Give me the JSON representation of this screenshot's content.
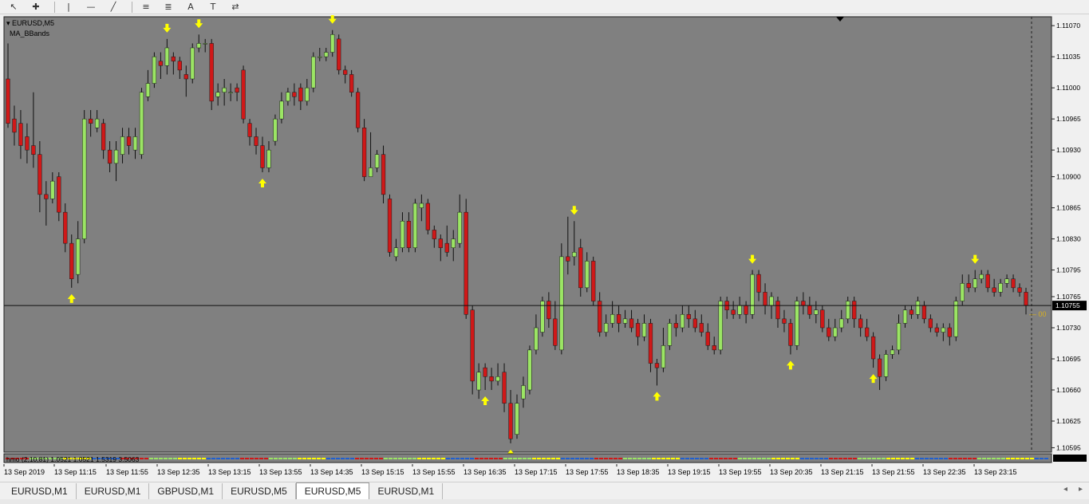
{
  "toolbar": {
    "tools": [
      {
        "name": "cursor-icon",
        "glyph": "↖"
      },
      {
        "name": "crosshair-icon",
        "glyph": "✚"
      },
      {
        "name": "vertical-line-icon",
        "glyph": "|"
      },
      {
        "name": "horizontal-line-icon",
        "glyph": "—"
      },
      {
        "name": "trendline-icon",
        "glyph": "╱"
      },
      {
        "name": "equidistant-channel-icon",
        "glyph": "≡"
      },
      {
        "name": "fibonacci-icon",
        "glyph": "≣"
      },
      {
        "name": "text-icon",
        "glyph": "A"
      },
      {
        "name": "text-label-icon",
        "glyph": "T"
      },
      {
        "name": "arrows-icon",
        "glyph": "⇄"
      }
    ]
  },
  "chart": {
    "symbol_label": "▾ EURUSD,M5",
    "indicator_label": "MA_BBands",
    "sub_indicator_label": "hmo (2,10,81) 1.0521 1.0521 1.5319 3.5063",
    "current_price": "1.10755",
    "price_marker_text": "— 00",
    "colors": {
      "background": "#808080",
      "bull": "#9be564",
      "bear": "#d01818",
      "wick": "#101010",
      "arrow": "#ffff00",
      "price_line": "#101010"
    }
  },
  "chart_data": {
    "type": "candlestick",
    "title": "EURUSD,M5",
    "y_ticks": [
      "1.11070",
      "1.11035",
      "1.11000",
      "1.10965",
      "1.10930",
      "1.10900",
      "1.10865",
      "1.10830",
      "1.10795",
      "1.10765",
      "1.10730",
      "1.10695",
      "1.10660",
      "1.10625",
      "1.10595"
    ],
    "ylim": [
      1.1059,
      1.1108
    ],
    "x_ticks": [
      "13 Sep 2019",
      "13 Sep 11:15",
      "13 Sep 11:55",
      "13 Sep 12:35",
      "13 Sep 13:15",
      "13 Sep 13:55",
      "13 Sep 14:35",
      "13 Sep 15:15",
      "13 Sep 15:55",
      "13 Sep 16:35",
      "13 Sep 17:15",
      "13 Sep 17:55",
      "13 Sep 18:35",
      "13 Sep 19:15",
      "13 Sep 19:55",
      "13 Sep 20:35",
      "13 Sep 21:15",
      "13 Sep 21:55",
      "13 Sep 22:35",
      "13 Sep 23:15"
    ],
    "candles": [
      [
        1.1101,
        1.1096,
        1.1105,
        1.10955
      ],
      [
        1.10965,
        1.1095,
        1.1098,
        1.10935
      ],
      [
        1.1096,
        1.10935,
        1.10975,
        1.1092
      ],
      [
        1.10945,
        1.1093,
        1.1096,
        1.10915
      ],
      [
        1.10935,
        1.10925,
        1.10995,
        1.1091
      ],
      [
        1.10925,
        1.1088,
        1.1094,
        1.1086
      ],
      [
        1.1088,
        1.10875,
        1.10895,
        1.10845
      ],
      [
        1.10875,
        1.10895,
        1.10905,
        1.1087
      ],
      [
        1.109,
        1.1086,
        1.10905,
        1.1085
      ],
      [
        1.1086,
        1.10825,
        1.1087,
        1.10815
      ],
      [
        1.10825,
        1.10785,
        1.10835,
        1.10775
      ],
      [
        1.1079,
        1.1083,
        1.1085,
        1.1078
      ],
      [
        1.1083,
        1.10965,
        1.10975,
        1.10825
      ],
      [
        1.10965,
        1.1096,
        1.10975,
        1.10945
      ],
      [
        1.10955,
        1.10965,
        1.10975,
        1.1095
      ],
      [
        1.1096,
        1.1093,
        1.10965,
        1.1092
      ],
      [
        1.1093,
        1.10915,
        1.1094,
        1.10905
      ],
      [
        1.10915,
        1.1093,
        1.1094,
        1.10895
      ],
      [
        1.10925,
        1.10945,
        1.10955,
        1.10915
      ],
      [
        1.10945,
        1.10935,
        1.10955,
        1.10925
      ],
      [
        1.1093,
        1.10945,
        1.10955,
        1.1092
      ],
      [
        1.10925,
        1.10995,
        1.11,
        1.1092
      ],
      [
        1.1099,
        1.11005,
        1.1102,
        1.10985
      ],
      [
        1.11005,
        1.11035,
        1.1104,
        1.11
      ],
      [
        1.1103,
        1.11025,
        1.1104,
        1.1101
      ],
      [
        1.11025,
        1.11045,
        1.11055,
        1.11015
      ],
      [
        1.11035,
        1.1103,
        1.1104,
        1.11015
      ],
      [
        1.1103,
        1.1102,
        1.11035,
        1.1101
      ],
      [
        1.11015,
        1.1101,
        1.11025,
        1.1099
      ],
      [
        1.1101,
        1.11045,
        1.1105,
        1.11005
      ],
      [
        1.11045,
        1.1105,
        1.1106,
        1.1104
      ],
      [
        1.1105,
        1.1105,
        1.11055,
        1.1104
      ],
      [
        1.1105,
        1.10985,
        1.11055,
        1.10975
      ],
      [
        1.1099,
        1.10995,
        1.11005,
        1.1098
      ],
      [
        1.10995,
        1.11,
        1.1101,
        1.1098
      ],
      [
        1.10995,
        1.10995,
        1.11005,
        1.10985
      ],
      [
        1.11,
        1.10995,
        1.11005,
        1.10985
      ],
      [
        1.1102,
        1.10965,
        1.11025,
        1.1096
      ],
      [
        1.1096,
        1.10945,
        1.10965,
        1.10935
      ],
      [
        1.10945,
        1.10935,
        1.10955,
        1.10925
      ],
      [
        1.10935,
        1.1091,
        1.10945,
        1.10905
      ],
      [
        1.1091,
        1.1093,
        1.1094,
        1.10905
      ],
      [
        1.1094,
        1.10965,
        1.1097,
        1.10935
      ],
      [
        1.10965,
        1.10985,
        1.10995,
        1.1096
      ],
      [
        1.10985,
        1.10995,
        1.11,
        1.1098
      ],
      [
        1.10995,
        1.1099,
        1.11005,
        1.1098
      ],
      [
        1.11,
        1.10985,
        1.11005,
        1.10975
      ],
      [
        1.10985,
        1.11,
        1.1101,
        1.1098
      ],
      [
        1.11,
        1.11035,
        1.1104,
        1.10995
      ],
      [
        1.11035,
        1.11035,
        1.11045,
        1.1103
      ],
      [
        1.11035,
        1.1104,
        1.11045,
        1.1103
      ],
      [
        1.1104,
        1.1106,
        1.11065,
        1.11035
      ],
      [
        1.11055,
        1.1102,
        1.1106,
        1.11015
      ],
      [
        1.1102,
        1.11015,
        1.11025,
        1.11005
      ],
      [
        1.11015,
        1.10995,
        1.1102,
        1.1099
      ],
      [
        1.10995,
        1.10955,
        1.11,
        1.1095
      ],
      [
        1.10955,
        1.109,
        1.10965,
        1.10895
      ],
      [
        1.109,
        1.1091,
        1.1095,
        1.109
      ],
      [
        1.1091,
        1.10925,
        1.1093,
        1.10905
      ],
      [
        1.10925,
        1.1088,
        1.10935,
        1.1087
      ],
      [
        1.10875,
        1.10815,
        1.1088,
        1.1081
      ],
      [
        1.1081,
        1.1082,
        1.1083,
        1.10805
      ],
      [
        1.1082,
        1.1085,
        1.1086,
        1.10815
      ],
      [
        1.1085,
        1.1082,
        1.1086,
        1.10815
      ],
      [
        1.1082,
        1.1087,
        1.10875,
        1.10815
      ],
      [
        1.10865,
        1.1087,
        1.1088,
        1.1085
      ],
      [
        1.1087,
        1.1084,
        1.10875,
        1.10835
      ],
      [
        1.1084,
        1.1083,
        1.10845,
        1.1082
      ],
      [
        1.1083,
        1.1082,
        1.10835,
        1.10805
      ],
      [
        1.10825,
        1.10815,
        1.10845,
        1.1081
      ],
      [
        1.1082,
        1.1083,
        1.1084,
        1.10805
      ],
      [
        1.10825,
        1.1086,
        1.1088,
        1.1082
      ],
      [
        1.1086,
        1.10745,
        1.10875,
        1.1074
      ],
      [
        1.1075,
        1.1067,
        1.10755,
        1.10655
      ],
      [
        1.1066,
        1.1068,
        1.1069,
        1.1065
      ],
      [
        1.10685,
        1.10675,
        1.1069,
        1.1066
      ],
      [
        1.10675,
        1.1067,
        1.10685,
        1.1066
      ],
      [
        1.1067,
        1.10675,
        1.1069,
        1.10665
      ],
      [
        1.1068,
        1.10645,
        1.1069,
        1.10635
      ],
      [
        1.10645,
        1.10605,
        1.1066,
        1.106
      ],
      [
        1.1061,
        1.10645,
        1.10655,
        1.10605
      ],
      [
        1.1065,
        1.10665,
        1.10675,
        1.1064
      ],
      [
        1.1066,
        1.10705,
        1.1071,
        1.10655
      ],
      [
        1.10705,
        1.1073,
        1.10745,
        1.107
      ],
      [
        1.10725,
        1.1076,
        1.10765,
        1.1072
      ],
      [
        1.1076,
        1.1074,
        1.1077,
        1.1073
      ],
      [
        1.1074,
        1.1071,
        1.1076,
        1.10705
      ],
      [
        1.10705,
        1.1081,
        1.10825,
        1.107
      ],
      [
        1.1081,
        1.10805,
        1.10855,
        1.1079
      ],
      [
        1.1081,
        1.10815,
        1.1085,
        1.108
      ],
      [
        1.1082,
        1.10775,
        1.1083,
        1.10765
      ],
      [
        1.10775,
        1.10805,
        1.10815,
        1.1077
      ],
      [
        1.10805,
        1.1076,
        1.1081,
        1.10755
      ],
      [
        1.1076,
        1.10725,
        1.1077,
        1.1072
      ],
      [
        1.10725,
        1.10735,
        1.10745,
        1.1072
      ],
      [
        1.10735,
        1.10745,
        1.1076,
        1.1073
      ],
      [
        1.10745,
        1.10735,
        1.10755,
        1.10725
      ],
      [
        1.10735,
        1.1074,
        1.1075,
        1.1073
      ],
      [
        1.1074,
        1.1073,
        1.1075,
        1.10725
      ],
      [
        1.10735,
        1.1072,
        1.1074,
        1.1071
      ],
      [
        1.1072,
        1.10735,
        1.10745,
        1.10715
      ],
      [
        1.10735,
        1.1069,
        1.1074,
        1.1068
      ],
      [
        1.1069,
        1.10685,
        1.10695,
        1.10665
      ],
      [
        1.10685,
        1.1071,
        1.1073,
        1.1068
      ],
      [
        1.1071,
        1.10735,
        1.1074,
        1.10705
      ],
      [
        1.10735,
        1.1073,
        1.10745,
        1.1072
      ],
      [
        1.1073,
        1.10745,
        1.10755,
        1.10725
      ],
      [
        1.10745,
        1.1074,
        1.10755,
        1.1073
      ],
      [
        1.1074,
        1.1073,
        1.1075,
        1.10725
      ],
      [
        1.10735,
        1.10725,
        1.10745,
        1.1072
      ],
      [
        1.10725,
        1.1071,
        1.10735,
        1.10705
      ],
      [
        1.1071,
        1.10705,
        1.1072,
        1.107
      ],
      [
        1.10705,
        1.1076,
        1.10765,
        1.107
      ],
      [
        1.1076,
        1.1075,
        1.10765,
        1.1074
      ],
      [
        1.1075,
        1.10745,
        1.1076,
        1.1074
      ],
      [
        1.10745,
        1.10755,
        1.10765,
        1.1074
      ],
      [
        1.10755,
        1.10745,
        1.1076,
        1.10735
      ],
      [
        1.10745,
        1.1079,
        1.10795,
        1.1074
      ],
      [
        1.1079,
        1.1077,
        1.10795,
        1.1076
      ],
      [
        1.1077,
        1.10755,
        1.1078,
        1.10745
      ],
      [
        1.10755,
        1.10765,
        1.1077,
        1.1074
      ],
      [
        1.1076,
        1.1074,
        1.10765,
        1.1073
      ],
      [
        1.1074,
        1.10735,
        1.1075,
        1.10725
      ],
      [
        1.10735,
        1.1071,
        1.1074,
        1.107
      ],
      [
        1.1071,
        1.1076,
        1.10765,
        1.10705
      ],
      [
        1.1076,
        1.10755,
        1.1077,
        1.10745
      ],
      [
        1.10755,
        1.10745,
        1.10765,
        1.1074
      ],
      [
        1.10745,
        1.1075,
        1.1076,
        1.10735
      ],
      [
        1.1075,
        1.1073,
        1.10755,
        1.10725
      ],
      [
        1.1073,
        1.1072,
        1.1074,
        1.10715
      ],
      [
        1.1072,
        1.1073,
        1.1074,
        1.10715
      ],
      [
        1.1073,
        1.1074,
        1.1075,
        1.10725
      ],
      [
        1.1074,
        1.1076,
        1.10765,
        1.10735
      ],
      [
        1.1076,
        1.1074,
        1.10765,
        1.1073
      ],
      [
        1.1074,
        1.1073,
        1.10745,
        1.1072
      ],
      [
        1.1073,
        1.1072,
        1.1074,
        1.10715
      ],
      [
        1.1072,
        1.10695,
        1.10725,
        1.10685
      ],
      [
        1.10695,
        1.10675,
        1.107,
        1.1066
      ],
      [
        1.10675,
        1.107,
        1.10705,
        1.1067
      ],
      [
        1.107,
        1.10705,
        1.1071,
        1.10695
      ],
      [
        1.10705,
        1.10735,
        1.10745,
        1.107
      ],
      [
        1.10735,
        1.1075,
        1.10755,
        1.1073
      ],
      [
        1.1075,
        1.10745,
        1.10755,
        1.1074
      ],
      [
        1.10745,
        1.1076,
        1.10765,
        1.1074
      ],
      [
        1.10755,
        1.1074,
        1.1076,
        1.10735
      ],
      [
        1.1074,
        1.1073,
        1.10745,
        1.10725
      ],
      [
        1.1073,
        1.10725,
        1.10735,
        1.1072
      ],
      [
        1.10725,
        1.1073,
        1.10735,
        1.10715
      ],
      [
        1.1073,
        1.1072,
        1.10735,
        1.1071
      ],
      [
        1.1072,
        1.1076,
        1.10765,
        1.10715
      ],
      [
        1.1076,
        1.1078,
        1.1079,
        1.10755
      ],
      [
        1.1078,
        1.10775,
        1.1079,
        1.1077
      ],
      [
        1.10775,
        1.10785,
        1.10795,
        1.1077
      ],
      [
        1.10785,
        1.1079,
        1.10795,
        1.1078
      ],
      [
        1.1079,
        1.10775,
        1.10795,
        1.1077
      ],
      [
        1.10775,
        1.1077,
        1.10785,
        1.10765
      ],
      [
        1.1077,
        1.1078,
        1.10785,
        1.10765
      ],
      [
        1.1078,
        1.10785,
        1.1079,
        1.10775
      ],
      [
        1.10785,
        1.10775,
        1.1079,
        1.1077
      ],
      [
        1.10775,
        1.1077,
        1.1078,
        1.10765
      ],
      [
        1.1077,
        1.10755,
        1.10775,
        1.10745
      ]
    ],
    "signals": [
      {
        "index": 10,
        "dir": "up"
      },
      {
        "index": 25,
        "dir": "down"
      },
      {
        "index": 30,
        "dir": "down"
      },
      {
        "index": 40,
        "dir": "up"
      },
      {
        "index": 51,
        "dir": "down"
      },
      {
        "index": 75,
        "dir": "up"
      },
      {
        "index": 79,
        "dir": "up"
      },
      {
        "index": 89,
        "dir": "down"
      },
      {
        "index": 102,
        "dir": "up"
      },
      {
        "index": 117,
        "dir": "down"
      },
      {
        "index": 123,
        "dir": "up"
      },
      {
        "index": 136,
        "dir": "up"
      },
      {
        "index": 152,
        "dir": "down"
      }
    ]
  },
  "tabs": [
    "EURUSD,M1",
    "EURUSD,M1",
    "GBPUSD,M1",
    "EURUSD,M5",
    "EURUSD,M5",
    "EURUSD,M1"
  ],
  "active_tab": 4,
  "tab_nav": {
    "prev": "◂",
    "next": "▸"
  }
}
